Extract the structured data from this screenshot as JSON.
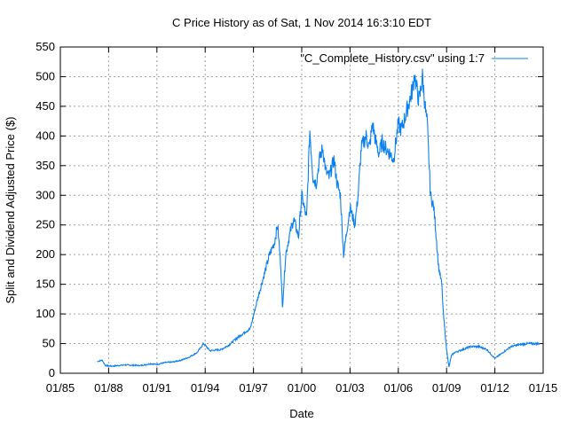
{
  "chart_data": {
    "type": "line",
    "title": "C Price History as of Sat, 1 Nov 2014 16:3:10 EDT",
    "xlabel": "Date",
    "ylabel": "Split and Dividend Adjusted Price ($)",
    "xlim": [
      1985,
      2015
    ],
    "ylim": [
      0,
      550
    ],
    "grid": true,
    "legend_position": "top-right",
    "x_ticks": [
      {
        "value": 1985,
        "label": "01/85"
      },
      {
        "value": 1988,
        "label": "01/88"
      },
      {
        "value": 1991,
        "label": "01/91"
      },
      {
        "value": 1994,
        "label": "01/94"
      },
      {
        "value": 1997,
        "label": "01/97"
      },
      {
        "value": 2000,
        "label": "01/00"
      },
      {
        "value": 2003,
        "label": "01/03"
      },
      {
        "value": 2006,
        "label": "01/06"
      },
      {
        "value": 2009,
        "label": "01/09"
      },
      {
        "value": 2012,
        "label": "01/12"
      },
      {
        "value": 2015,
        "label": "01/15"
      }
    ],
    "y_ticks": [
      0,
      50,
      100,
      150,
      200,
      250,
      300,
      350,
      400,
      450,
      500,
      550
    ],
    "series": [
      {
        "name": "\"C_Complete_History.csv\" using 1:7",
        "color": "#0a80f0",
        "x": [
          1987.3,
          1987.6,
          1987.8,
          1988.2,
          1989,
          1990,
          1990.6,
          1991,
          1991.5,
          1992,
          1992.5,
          1993,
          1993.5,
          1993.9,
          1994.3,
          1995,
          1995.5,
          1996,
          1996.5,
          1996.8,
          1997.3,
          1997.7,
          1998,
          1998.3,
          1998.5,
          1998.7,
          1998.8,
          1999,
          1999.3,
          1999.5,
          1999.8,
          2000,
          2000.3,
          2000.5,
          2000.7,
          2000.9,
          2001.1,
          2001.3,
          2001.5,
          2001.7,
          2002,
          2002.2,
          2002.4,
          2002.6,
          2002.8,
          2003,
          2003.2,
          2003.3,
          2003.5,
          2003.7,
          2004,
          2004.2,
          2004.4,
          2004.6,
          2004.8,
          2005,
          2005.2,
          2005.5,
          2005.7,
          2006,
          2006.2,
          2006.5,
          2006.7,
          2006.9,
          2007,
          2007.2,
          2007.3,
          2007.5,
          2007.7,
          2007.8,
          2008,
          2008.2,
          2008.3,
          2008.5,
          2008.7,
          2008.8,
          2009,
          2009.15,
          2009.3,
          2009.5,
          2010,
          2010.5,
          2011,
          2011.5,
          2012,
          2012.5,
          2013,
          2013.5,
          2014,
          2014.5,
          2014.8
        ],
        "y": [
          20,
          22,
          13,
          12,
          14,
          13,
          16,
          15,
          18,
          19,
          22,
          27,
          35,
          50,
          38,
          40,
          48,
          60,
          70,
          75,
          130,
          170,
          200,
          220,
          250,
          180,
          110,
          200,
          240,
          260,
          230,
          300,
          260,
          410,
          330,
          320,
          360,
          380,
          340,
          330,
          360,
          320,
          300,
          200,
          240,
          280,
          260,
          250,
          300,
          380,
          400,
          380,
          420,
          390,
          370,
          390,
          380,
          370,
          360,
          420,
          410,
          440,
          460,
          480,
          505,
          470,
          460,
          500,
          440,
          420,
          300,
          280,
          250,
          180,
          150,
          100,
          40,
          10,
          30,
          35,
          40,
          45,
          45,
          40,
          25,
          35,
          45,
          48,
          50,
          50,
          50
        ]
      }
    ]
  }
}
